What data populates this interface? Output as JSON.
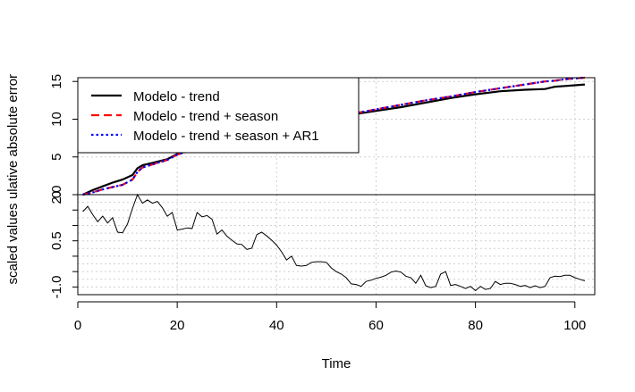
{
  "chart_data": [
    {
      "type": "line",
      "panel": "top",
      "ylabel": "ulative absolute error",
      "xlim": [
        0,
        104
      ],
      "ylim": [
        0,
        15.5
      ],
      "yticks": [
        0,
        5,
        10,
        15
      ],
      "grid": true,
      "legend_position": "top-left",
      "series": [
        {
          "name": "Modelo - trend",
          "color": "#000000",
          "style": "solid",
          "x": [
            1,
            3,
            5,
            7,
            9,
            11,
            12,
            13,
            15,
            18,
            20,
            25,
            30,
            35,
            40,
            45,
            50,
            55,
            60,
            65,
            70,
            75,
            80,
            85,
            90,
            94,
            96,
            98,
            100,
            102
          ],
          "y": [
            0,
            0.6,
            1.1,
            1.6,
            2.0,
            2.6,
            3.5,
            3.9,
            4.2,
            4.7,
            5.4,
            6.3,
            7.0,
            7.8,
            8.6,
            9.3,
            10.0,
            10.6,
            11.1,
            11.6,
            12.2,
            12.8,
            13.3,
            13.7,
            13.9,
            14.0,
            14.3,
            14.4,
            14.5,
            14.6
          ]
        },
        {
          "name": "Modelo - trend + season",
          "color": "#ff0000",
          "style": "dashed",
          "x": [
            1,
            3,
            5,
            7,
            9,
            11,
            12,
            13,
            15,
            18,
            20,
            25,
            30,
            35,
            40,
            45,
            50,
            55,
            60,
            65,
            70,
            75,
            80,
            85,
            90,
            94,
            96,
            98,
            100,
            102
          ],
          "y": [
            0,
            0.3,
            0.7,
            1.0,
            1.3,
            2.0,
            3.0,
            3.6,
            4.0,
            4.6,
            5.3,
            6.3,
            7.1,
            7.9,
            8.7,
            9.4,
            10.1,
            10.7,
            11.3,
            11.9,
            12.5,
            13.0,
            13.6,
            14.1,
            14.6,
            15.0,
            15.1,
            15.3,
            15.4,
            15.5
          ]
        },
        {
          "name": "Modelo - trend + season + AR1",
          "color": "#0000ff",
          "style": "dotted",
          "x": [
            1,
            3,
            5,
            7,
            9,
            11,
            12,
            13,
            15,
            18,
            20,
            25,
            30,
            35,
            40,
            45,
            50,
            55,
            60,
            65,
            70,
            75,
            80,
            85,
            90,
            94,
            96,
            98,
            100,
            102
          ],
          "y": [
            0,
            0.3,
            0.7,
            1.0,
            1.3,
            2.0,
            3.0,
            3.6,
            4.0,
            4.6,
            5.3,
            6.3,
            7.1,
            7.9,
            8.7,
            9.4,
            10.1,
            10.7,
            11.3,
            11.9,
            12.5,
            13.0,
            13.6,
            14.1,
            14.6,
            15.0,
            15.1,
            15.3,
            15.4,
            15.5
          ]
        }
      ]
    },
    {
      "type": "line",
      "panel": "bottom",
      "xlabel": "Time",
      "ylabel": "scaled values",
      "xlim": [
        0,
        104
      ],
      "ylim": [
        -1.25,
        2.0
      ],
      "xticks": [
        0,
        20,
        40,
        60,
        80,
        100
      ],
      "yticks": [
        -1.0,
        0.5,
        2.0
      ],
      "ytick_labels": [
        "-1.0",
        "0.5",
        "2.0"
      ],
      "grid": true,
      "series": [
        {
          "color": "#000000",
          "style": "solid",
          "x": [
            1,
            2,
            3,
            4,
            5,
            6,
            7,
            8,
            9,
            10,
            11,
            12,
            13,
            14,
            15,
            16,
            17,
            18,
            19,
            20,
            21,
            22,
            23,
            24,
            25,
            26,
            27,
            28,
            29,
            30,
            31,
            32,
            33,
            34,
            35,
            36,
            37,
            38,
            39,
            40,
            41,
            42,
            43,
            44,
            45,
            46,
            47,
            48,
            49,
            50,
            51,
            52,
            53,
            54,
            55,
            56,
            57,
            58,
            59,
            60,
            61,
            62,
            63,
            64,
            65,
            66,
            67,
            68,
            69,
            70,
            71,
            72,
            73,
            74,
            75,
            76,
            77,
            78,
            79,
            80,
            81,
            82,
            83,
            84,
            85,
            86,
            87,
            88,
            89,
            90,
            91,
            92,
            93,
            94,
            95,
            96,
            97,
            98,
            99,
            100,
            101,
            102
          ],
          "y": [
            1.45,
            1.62,
            1.35,
            1.12,
            1.3,
            1.08,
            1.25,
            0.78,
            0.76,
            1.05,
            1.55,
            2.0,
            1.72,
            1.83,
            1.72,
            1.78,
            1.58,
            1.3,
            1.42,
            0.85,
            0.88,
            0.92,
            0.9,
            1.42,
            1.28,
            1.32,
            1.2,
            0.72,
            0.85,
            0.65,
            0.52,
            0.4,
            0.38,
            0.22,
            0.26,
            0.7,
            0.78,
            0.66,
            0.52,
            0.36,
            0.14,
            -0.12,
            0.0,
            -0.3,
            -0.32,
            -0.3,
            -0.2,
            -0.18,
            -0.18,
            -0.2,
            -0.38,
            -0.5,
            -0.58,
            -0.7,
            -0.9,
            -0.92,
            -0.98,
            -0.82,
            -0.78,
            -0.72,
            -0.68,
            -0.62,
            -0.52,
            -0.48,
            -0.52,
            -0.65,
            -0.7,
            -0.88,
            -0.62,
            -0.96,
            -1.02,
            -0.98,
            -0.58,
            -0.5,
            -0.95,
            -0.92,
            -0.98,
            -1.05,
            -0.98,
            -1.12,
            -0.98,
            -1.08,
            -1.05,
            -0.82,
            -0.92,
            -0.88,
            -0.88,
            -0.92,
            -0.98,
            -0.95,
            -1.02,
            -0.96,
            -1.02,
            -0.98,
            -0.7,
            -0.65,
            -0.66,
            -0.62,
            -0.62,
            -0.7,
            -0.75,
            -0.8
          ]
        }
      ]
    }
  ]
}
